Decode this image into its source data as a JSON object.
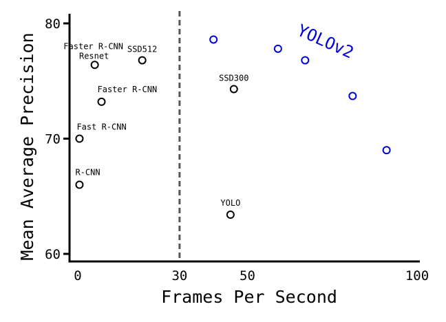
{
  "chart_data": {
    "type": "scatter",
    "xlabel": "Frames Per Second",
    "ylabel": "Mean Average Precision",
    "xticks": [
      {
        "value": 0,
        "label": "0"
      },
      {
        "value": 30,
        "label": "30"
      },
      {
        "value": 50,
        "label": "50"
      },
      {
        "value": 100,
        "label": "100"
      }
    ],
    "yticks": [
      {
        "value": 60,
        "label": "60"
      },
      {
        "value": 70,
        "label": "70"
      },
      {
        "value": 80,
        "label": "80"
      }
    ],
    "ylim": [
      59.2,
      81
    ],
    "reference_line": {
      "x": 30,
      "style": "dashed",
      "color": "#555555"
    },
    "series": [
      {
        "name": "",
        "color": "#000000",
        "points": [
          {
            "label": "R-CNN",
            "fps": 0.5,
            "map": 66.0
          },
          {
            "label": "Fast R-CNN",
            "fps": 0.5,
            "map": 70.0
          },
          {
            "label": "Faster R-CNN",
            "fps": 7,
            "map": 73.2
          },
          {
            "label": "Faster R-CNN Resnet",
            "fps": 5,
            "map": 76.4
          },
          {
            "label": "SSD512",
            "fps": 19,
            "map": 76.8
          },
          {
            "label": "SSD300",
            "fps": 46,
            "map": 74.3
          },
          {
            "label": "YOLO",
            "fps": 45,
            "map": 63.4
          }
        ]
      },
      {
        "name": "YOLOv2",
        "color": "#0000dd",
        "points": [
          {
            "label": "",
            "fps": 40,
            "map": 78.6
          },
          {
            "label": "",
            "fps": 59,
            "map": 77.8
          },
          {
            "label": "",
            "fps": 67,
            "map": 76.8
          },
          {
            "label": "",
            "fps": 81,
            "map": 73.7
          },
          {
            "label": "",
            "fps": 91,
            "map": 69.0
          }
        ]
      }
    ]
  }
}
